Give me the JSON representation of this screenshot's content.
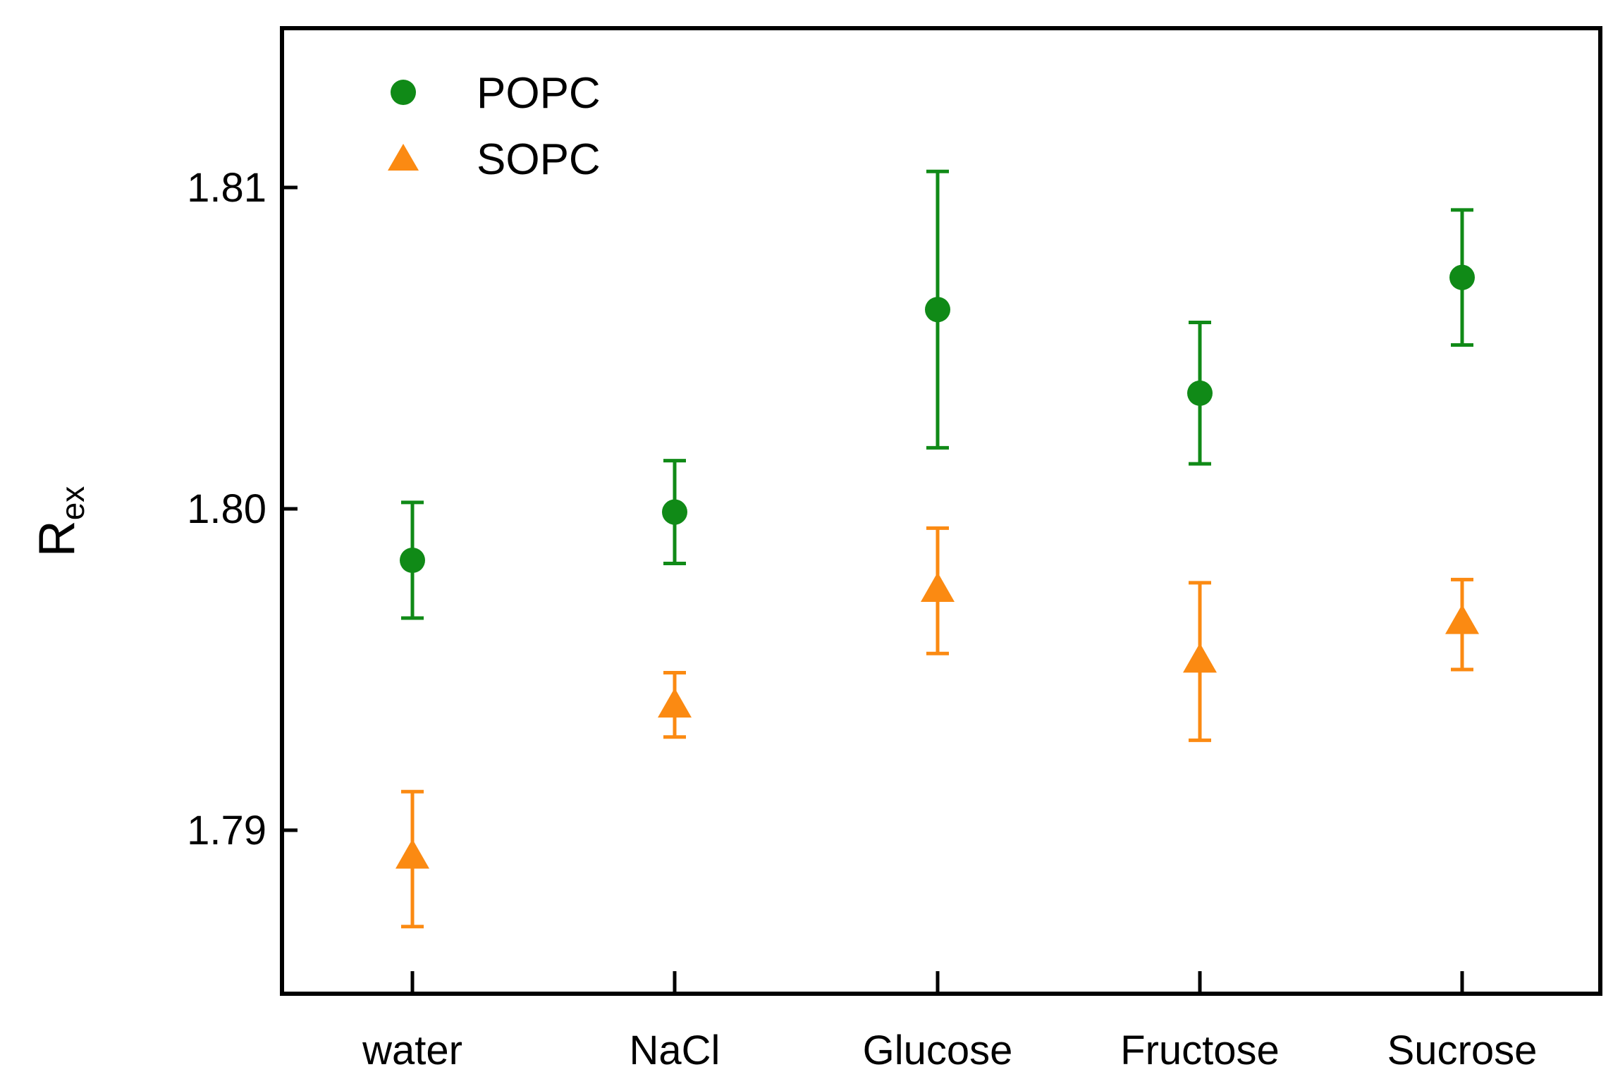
{
  "chart_data": {
    "type": "scatter",
    "title": "",
    "xlabel": "",
    "ylabel": {
      "main": "R",
      "subscript": "ex"
    },
    "categories": [
      "water",
      "NaCl",
      "Glucose",
      "Fructose",
      "Sucrose"
    ],
    "ylim": [
      1.785,
      1.815
    ],
    "yticks": [
      1.79,
      1.8,
      1.81
    ],
    "ytick_labels": [
      "1.79",
      "1.80",
      "1.81"
    ],
    "legend_position": "top-left",
    "series": [
      {
        "name": "POPC",
        "marker": "circle",
        "color": "#108a17",
        "values": [
          1.7984,
          1.7999,
          1.8062,
          1.8036,
          1.8072
        ],
        "err_low": [
          1.7966,
          1.7983,
          1.8019,
          1.8014,
          1.8051
        ],
        "err_high": [
          1.8002,
          1.8015,
          1.8105,
          1.8058,
          1.8093
        ]
      },
      {
        "name": "SOPC",
        "marker": "triangle",
        "color": "#fb8a12",
        "values": [
          1.7892,
          1.7939,
          1.7975,
          1.7953,
          1.7965
        ],
        "err_low": [
          1.787,
          1.7929,
          1.7955,
          1.7928,
          1.795
        ],
        "err_high": [
          1.7912,
          1.7949,
          1.7994,
          1.7977,
          1.7978
        ]
      }
    ]
  }
}
